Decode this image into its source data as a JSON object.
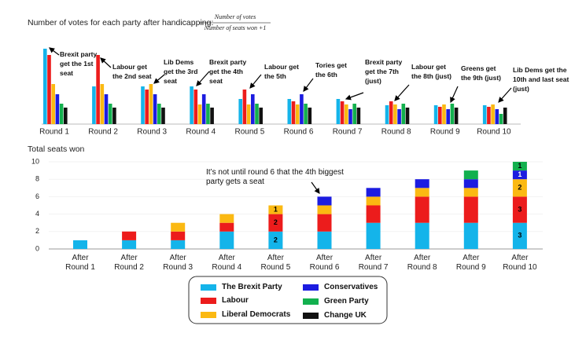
{
  "chart_data": [
    {
      "type": "bar",
      "title": "Number of votes for each party after handicapping:",
      "formula": {
        "numerator": "Number of votes",
        "denominator": "Number of seats won +1"
      },
      "categories": [
        "Round 1",
        "Round 2",
        "Round 3",
        "Round 4",
        "Round 5",
        "Round 6",
        "Round 7",
        "Round 8",
        "Round 9",
        "Round 10"
      ],
      "series": [
        {
          "name": "The Brexit Party",
          "color": "#14b4ea",
          "values": [
            96,
            48,
            48,
            48,
            32,
            32,
            32,
            24,
            24,
            24
          ]
        },
        {
          "name": "Labour",
          "color": "#ec1c1c",
          "values": [
            88,
            88,
            44,
            44,
            44,
            29,
            29,
            29,
            22,
            22
          ]
        },
        {
          "name": "Liberal Democrats",
          "color": "#fbb912",
          "values": [
            51,
            51,
            51,
            25,
            25,
            25,
            25,
            25,
            25,
            25
          ]
        },
        {
          "name": "Conservatives",
          "color": "#1c1ce0",
          "values": [
            38,
            38,
            38,
            38,
            38,
            38,
            19,
            19,
            19,
            19
          ]
        },
        {
          "name": "Green Party",
          "color": "#12b04e",
          "values": [
            26,
            26,
            26,
            26,
            26,
            26,
            26,
            26,
            26,
            13
          ]
        },
        {
          "name": "Change UK",
          "color": "#111111",
          "values": [
            21,
            21,
            21,
            21,
            21,
            21,
            21,
            21,
            21,
            21
          ]
        }
      ],
      "annotations": [
        "Brexit party get the 1st seat",
        "Labour get the 2nd seat",
        "Lib Dems get the 3rd seat",
        "Brexit party get the 4th seat",
        "Labour get the 5th",
        "Tories get the 6th",
        "Brexit party get the 7th (just)",
        "Labour get the 8th (just)",
        "Greens get the 9th (just)",
        "Lib Dems get the 10th and last seat (just)"
      ]
    },
    {
      "type": "stacked-bar",
      "title": "Total seats won",
      "categories": [
        "After Round 1",
        "After Round 2",
        "After Round 3",
        "After Round 4",
        "After Round 5",
        "After Round 6",
        "After Round 7",
        "After Round 8",
        "After Round 9",
        "After Round 10"
      ],
      "ylim": [
        0,
        10
      ],
      "yticks": [
        0,
        2,
        4,
        6,
        8,
        10
      ],
      "series": [
        {
          "name": "The Brexit Party",
          "color": "#14b4ea",
          "values": [
            1,
            1,
            1,
            2,
            2,
            2,
            3,
            3,
            3,
            3
          ],
          "value_labels": [
            null,
            null,
            null,
            null,
            "2",
            null,
            null,
            null,
            null,
            "3"
          ]
        },
        {
          "name": "Labour",
          "color": "#ec1c1c",
          "values": [
            0,
            1,
            1,
            1,
            2,
            2,
            2,
            3,
            3,
            3
          ],
          "value_labels": [
            null,
            null,
            null,
            null,
            "2",
            null,
            null,
            null,
            null,
            "3"
          ]
        },
        {
          "name": "Liberal Democrats",
          "color": "#fbb912",
          "values": [
            0,
            0,
            1,
            1,
            1,
            1,
            1,
            1,
            1,
            2
          ],
          "value_labels": [
            null,
            null,
            null,
            null,
            "1",
            null,
            null,
            null,
            null,
            "2"
          ]
        },
        {
          "name": "Conservatives",
          "color": "#1c1ce0",
          "values": [
            0,
            0,
            0,
            0,
            0,
            1,
            1,
            1,
            1,
            1
          ],
          "value_labels": [
            null,
            null,
            null,
            null,
            null,
            null,
            null,
            null,
            null,
            "1"
          ]
        },
        {
          "name": "Green Party",
          "color": "#12b04e",
          "values": [
            0,
            0,
            0,
            0,
            0,
            0,
            0,
            0,
            1,
            1
          ],
          "value_labels": [
            null,
            null,
            null,
            null,
            null,
            null,
            null,
            null,
            null,
            "1"
          ]
        },
        {
          "name": "Change UK",
          "color": "#111111",
          "values": [
            0,
            0,
            0,
            0,
            0,
            0,
            0,
            0,
            0,
            0
          ]
        }
      ],
      "annotations": [
        "It’s not until round 6 that the 4th biggest party gets a seat"
      ]
    }
  ]
}
